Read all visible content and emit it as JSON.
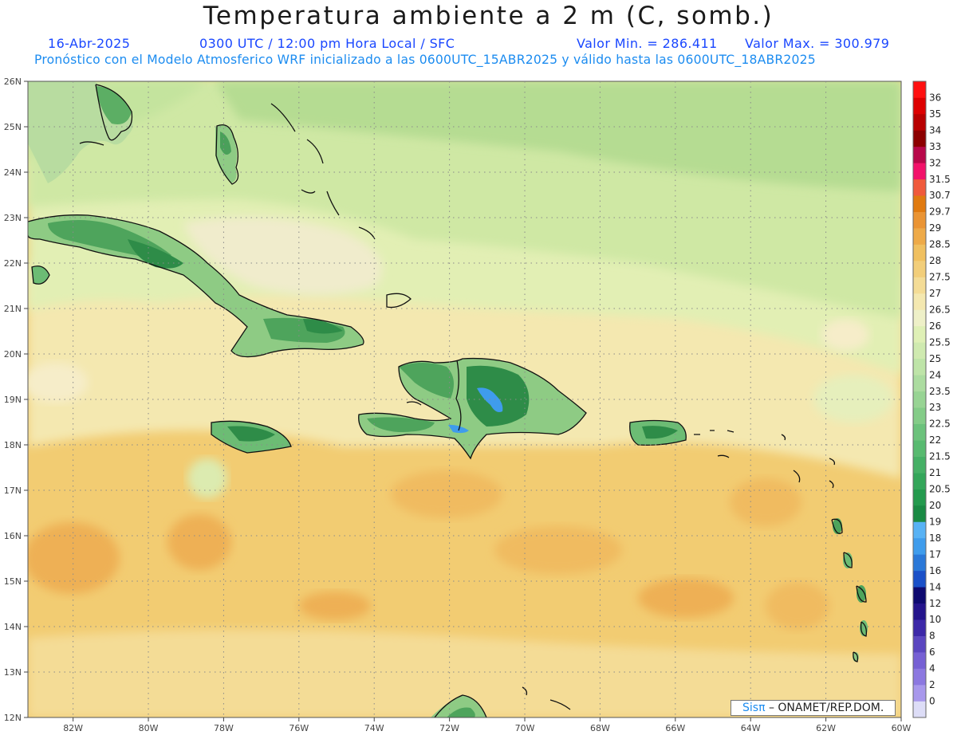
{
  "header": {
    "title": "Temperatura ambiente a 2 m (C, somb.)",
    "date": "16-Abr-2025",
    "time": "0300 UTC / 12:00 pm Hora Local / SFC",
    "valmin": "Valor Min. = 286.411",
    "valmax": "Valor Max. = 300.979",
    "forecast": "Pronóstico con el Modelo Atmosferico WRF inicializado a las 0600UTC_15ABR2025 y válido hasta las  0600UTC_18ABR2025"
  },
  "map": {
    "lat_labels": [
      "26N",
      "25N",
      "24N",
      "23N",
      "22N",
      "21N",
      "20N",
      "19N",
      "18N",
      "17N",
      "16N",
      "15N",
      "14N",
      "13N",
      "12N"
    ],
    "lon_labels": [
      "82W",
      "80W",
      "78W",
      "76W",
      "74W",
      "72W",
      "70W",
      "68W",
      "66W",
      "64W",
      "62W",
      "60W"
    ],
    "lat_range": [
      12,
      26
    ],
    "lon_range": [
      -83.2,
      -60
    ],
    "grid": "dotted"
  },
  "colorbar": {
    "levels": [
      "0",
      "2",
      "4",
      "6",
      "8",
      "10",
      "12",
      "14",
      "16",
      "17",
      "18",
      "19",
      "20",
      "20.5",
      "21",
      "21.5",
      "22",
      "22.5",
      "23",
      "23.5",
      "24",
      "25",
      "25.5",
      "26",
      "26.5",
      "27",
      "27.5",
      "28",
      "28.5",
      "29",
      "29.7",
      "30.7",
      "31.5",
      "32",
      "33",
      "34",
      "35",
      "36"
    ],
    "colors": [
      "#ddddf7",
      "#a898ec",
      "#8c78e0",
      "#7660d4",
      "#5a46c0",
      "#3c28a8",
      "#24148c",
      "#0e0a70",
      "#1a50c8",
      "#2a78d8",
      "#3f9cec",
      "#58b2f4",
      "#1a8a44",
      "#249a4e",
      "#34a65a",
      "#46b066",
      "#58ba70",
      "#6cc27c",
      "#84cc88",
      "#98d494",
      "#acdca0",
      "#bee4a8",
      "#cfeab0",
      "#dff0b6",
      "#eef0c8",
      "#f4e8b0",
      "#f4dc96",
      "#f2ce7a",
      "#f0c060",
      "#eeaa48",
      "#ea9434",
      "#e07a10",
      "#f05a3c",
      "#f2126a",
      "#b8084a",
      "#8c0000",
      "#b80000",
      "#dd0000",
      "#ff1010"
    ]
  },
  "credit": {
    "sis": "Sisπ",
    "rest": " – ONAMET/REP.DOM."
  }
}
